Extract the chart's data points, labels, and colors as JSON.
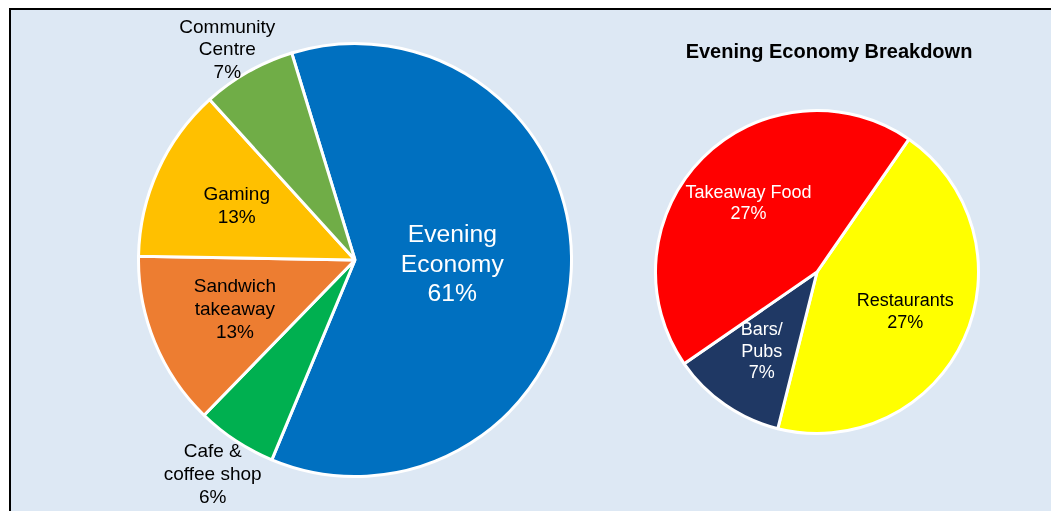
{
  "chart_data": [
    {
      "type": "pie",
      "categories": [
        "Evening Economy",
        "Cafe & coffee shop",
        "Sandwich takeaway",
        "Gaming",
        "Community Centre"
      ],
      "values": [
        61,
        6,
        13,
        13,
        7
      ],
      "value_labels": [
        "61%",
        "6%",
        "13%",
        "13%",
        "7%"
      ],
      "colors": [
        "#0070c0",
        "#00b050",
        "#ed7d31",
        "#ffc000",
        "#70ad47"
      ],
      "legend": false
    },
    {
      "type": "pie",
      "title": "Evening Economy Breakdown",
      "categories": [
        "Restaurants",
        "Bars/Pubs",
        "Takeaway Food"
      ],
      "values": [
        27,
        7,
        27
      ],
      "value_labels": [
        "27%",
        "7%",
        "27%"
      ],
      "colors": [
        "#ffff00",
        "#1f3864",
        "#ff0000"
      ],
      "legend": false
    }
  ]
}
